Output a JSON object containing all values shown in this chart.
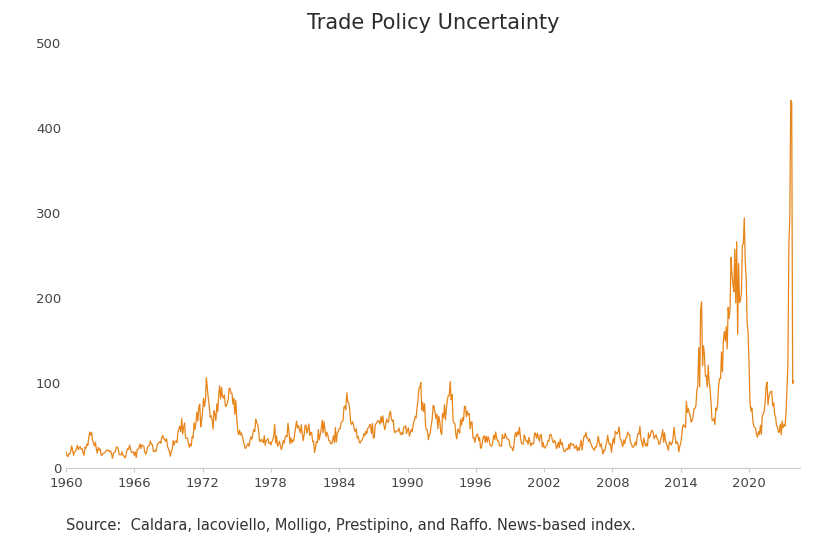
{
  "title": "Trade Policy Uncertainty",
  "source_text": "Source:  Caldara, Iacoviello, Molligo, Prestipino, and Raffo. News-based index.",
  "line_color": "#E8851A",
  "background_color": "#ffffff",
  "title_fontsize": 15,
  "source_fontsize": 10.5,
  "xlim": [
    1960,
    2024.5
  ],
  "ylim": [
    0,
    500
  ],
  "xticks": [
    1960,
    1966,
    1972,
    1978,
    1984,
    1990,
    1996,
    2002,
    2008,
    2014,
    2020
  ],
  "yticks": [
    0,
    100,
    200,
    300,
    400,
    500
  ],
  "monthly_data": [
    18,
    15,
    12,
    14,
    17,
    20,
    22,
    19,
    16,
    18,
    21,
    24,
    26,
    28,
    30,
    27,
    25,
    22,
    20,
    18,
    21,
    24,
    28,
    32,
    38,
    42,
    45,
    40,
    35,
    30,
    28,
    25,
    22,
    20,
    22,
    25,
    22,
    20,
    18,
    17,
    16,
    18,
    20,
    22,
    25,
    23,
    20,
    18,
    16,
    15,
    17,
    19,
    21,
    23,
    22,
    20,
    18,
    16,
    15,
    17,
    16,
    15,
    14,
    16,
    18,
    20,
    22,
    24,
    22,
    20,
    18,
    16,
    15,
    16,
    18,
    20,
    22,
    25,
    28,
    30,
    28,
    25,
    22,
    20,
    18,
    20,
    22,
    25,
    28,
    30,
    28,
    25,
    22,
    20,
    22,
    24,
    26,
    28,
    30,
    32,
    35,
    38,
    40,
    38,
    35,
    30,
    28,
    25,
    22,
    20,
    18,
    20,
    22,
    25,
    28,
    30,
    32,
    35,
    38,
    42,
    45,
    48,
    50,
    48,
    45,
    42,
    40,
    38,
    35,
    32,
    30,
    28,
    30,
    35,
    40,
    45,
    50,
    55,
    60,
    65,
    70,
    65,
    60,
    55,
    65,
    75,
    85,
    95,
    100,
    90,
    80,
    70,
    65,
    60,
    55,
    50,
    55,
    60,
    65,
    70,
    75,
    80,
    85,
    90,
    85,
    80,
    75,
    70,
    75,
    80,
    85,
    90,
    95,
    90,
    85,
    80,
    75,
    70,
    65,
    60,
    55,
    50,
    45,
    42,
    40,
    38,
    35,
    32,
    30,
    28,
    26,
    25,
    28,
    30,
    32,
    35,
    38,
    40,
    45,
    50,
    55,
    50,
    45,
    40,
    38,
    35,
    32,
    30,
    28,
    26,
    25,
    28,
    30,
    32,
    30,
    28,
    30,
    32,
    35,
    38,
    40,
    38,
    35,
    32,
    30,
    28,
    26,
    25,
    28,
    30,
    32,
    35,
    38,
    40,
    42,
    40,
    38,
    35,
    32,
    30,
    35,
    40,
    45,
    50,
    55,
    52,
    48,
    45,
    42,
    40,
    38,
    35,
    40,
    45,
    50,
    48,
    45,
    42,
    40,
    38,
    35,
    32,
    30,
    28,
    32,
    35,
    38,
    40,
    42,
    45,
    48,
    50,
    48,
    45,
    42,
    40,
    38,
    35,
    32,
    30,
    28,
    30,
    32,
    35,
    38,
    40,
    42,
    40,
    45,
    50,
    55,
    58,
    60,
    65,
    70,
    75,
    80,
    75,
    70,
    65,
    60,
    55,
    50,
    48,
    45,
    42,
    40,
    38,
    35,
    32,
    30,
    28,
    30,
    32,
    35,
    38,
    40,
    42,
    45,
    48,
    50,
    48,
    45,
    42,
    40,
    42,
    45,
    48,
    50,
    52,
    55,
    58,
    60,
    58,
    55,
    52,
    50,
    52,
    55,
    58,
    60,
    62,
    65,
    62,
    58,
    55,
    52,
    50,
    48,
    45,
    42,
    40,
    38,
    40,
    42,
    45,
    48,
    50,
    48,
    45,
    42,
    40,
    38,
    40,
    42,
    45,
    50,
    55,
    60,
    65,
    70,
    75,
    80,
    85,
    80,
    75,
    70,
    65,
    60,
    55,
    50,
    48,
    45,
    42,
    45,
    50,
    55,
    60,
    65,
    70,
    65,
    60,
    55,
    50,
    48,
    45,
    50,
    55,
    60,
    65,
    70,
    75,
    80,
    85,
    90,
    95,
    92,
    88,
    55,
    50,
    48,
    45,
    42,
    40,
    42,
    45,
    48,
    50,
    52,
    55,
    58,
    60,
    62,
    60,
    58,
    55,
    52,
    50,
    48,
    45,
    42,
    40,
    38,
    36,
    34,
    32,
    30,
    28,
    30,
    32,
    35,
    38,
    40,
    38,
    36,
    34,
    32,
    30,
    28,
    30,
    32,
    35,
    38,
    40,
    38,
    35,
    32,
    30,
    28,
    30,
    32,
    35,
    38,
    40,
    38,
    35,
    32,
    30,
    28,
    26,
    25,
    28,
    30,
    32,
    35,
    38,
    40,
    38,
    35,
    32,
    30,
    32,
    35,
    38,
    40,
    38,
    35,
    32,
    30,
    28,
    26,
    25,
    28,
    32,
    35,
    38,
    40,
    42,
    40,
    38,
    35,
    32,
    30,
    28,
    26,
    25,
    28,
    30,
    32,
    35,
    38,
    40,
    38,
    35,
    32,
    30,
    28,
    26,
    25,
    28,
    30,
    32,
    30,
    28,
    26,
    25,
    24,
    22,
    22,
    24,
    26,
    28,
    30,
    32,
    30,
    28,
    26,
    25,
    24,
    22,
    22,
    24,
    26,
    28,
    30,
    32,
    35,
    38,
    40,
    38,
    35,
    32,
    30,
    28,
    26,
    25,
    24,
    22,
    24,
    26,
    28,
    30,
    28,
    26,
    25,
    24,
    22,
    24,
    26,
    28,
    30,
    32,
    30,
    28,
    26,
    25,
    28,
    32,
    35,
    38,
    40,
    42,
    40,
    38,
    35,
    32,
    30,
    28,
    30,
    32,
    35,
    38,
    40,
    38,
    35,
    32,
    30,
    28,
    26,
    25,
    28,
    30,
    32,
    35,
    38,
    40,
    38,
    35,
    32,
    30,
    28,
    26,
    28,
    30,
    32,
    35,
    38,
    40,
    42,
    40,
    38,
    35,
    32,
    30,
    28,
    30,
    32,
    35,
    38,
    40,
    38,
    35,
    32,
    30,
    28,
    26,
    28,
    30,
    32,
    35,
    38,
    40,
    38,
    35,
    32,
    30,
    28,
    26,
    30,
    35,
    40,
    45,
    50,
    55,
    60,
    65,
    70,
    65,
    60,
    55,
    60,
    65,
    70,
    75,
    80,
    90,
    100,
    120,
    140,
    165,
    170,
    160,
    150,
    140,
    130,
    120,
    110,
    100,
    90,
    80,
    70,
    65,
    60,
    55,
    60,
    65,
    70,
    80,
    90,
    100,
    110,
    120,
    130,
    140,
    150,
    155,
    160,
    165,
    170,
    180,
    200,
    220,
    250,
    260,
    255,
    240,
    230,
    220,
    210,
    200,
    190,
    200,
    220,
    250,
    265,
    260,
    240,
    220,
    180,
    160,
    120,
    100,
    80,
    65,
    55,
    50,
    48,
    45,
    42,
    40,
    42,
    45,
    48,
    50,
    55,
    60,
    65,
    70,
    80,
    90,
    95,
    100,
    95,
    90,
    85,
    80,
    75,
    70,
    65,
    60,
    55,
    50,
    48,
    46,
    44,
    42,
    45,
    50,
    55,
    60,
    100,
    120,
    200,
    300,
    380,
    470,
    100,
    85
  ]
}
